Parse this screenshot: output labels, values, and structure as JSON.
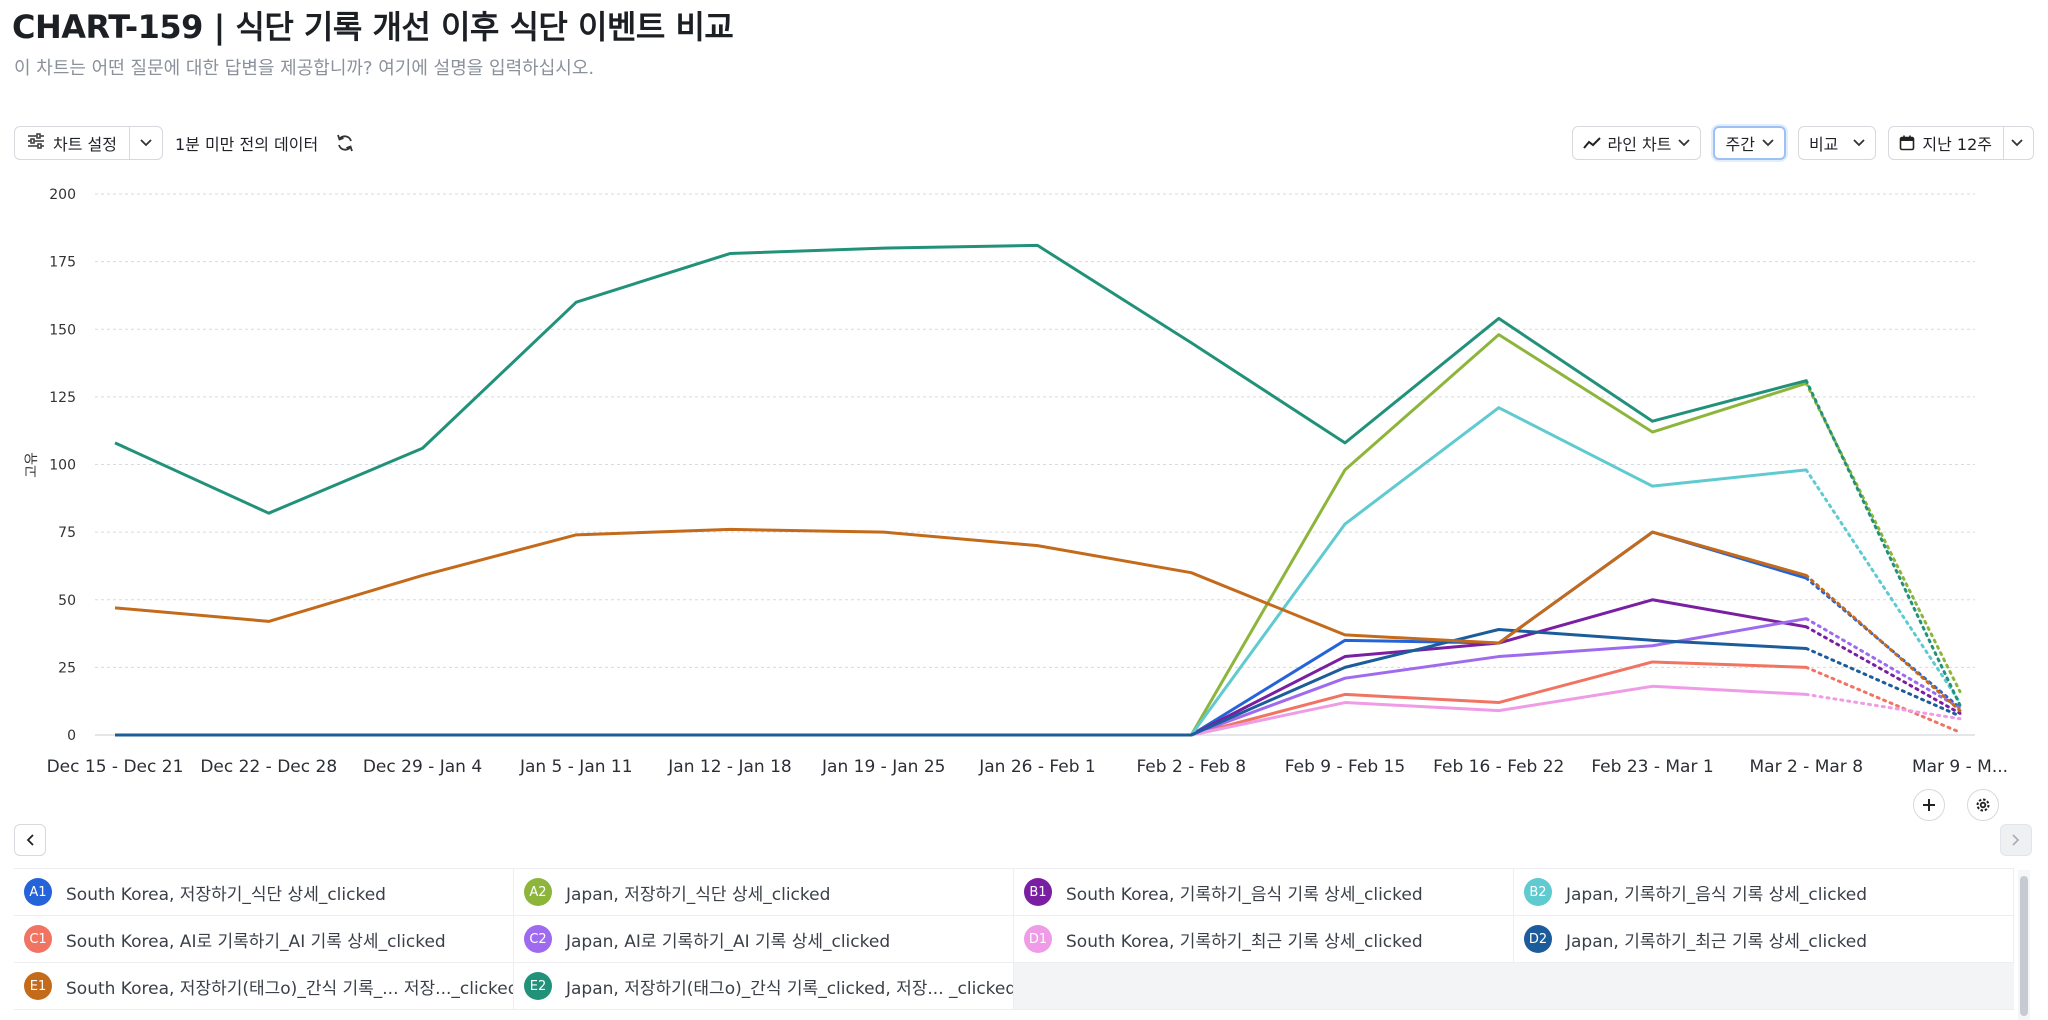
{
  "header": {
    "title": "CHART-159 | 식단 기록 개선 이후 식단 이벤트 비교",
    "subtitle": "이 차트는 어떤 질문에 대한 답변을 제공합니까? 여기에 설명을 입력하십시오."
  },
  "toolbar": {
    "settings_label": "차트 설정",
    "updated_label": "1분 미만 전의 데이터",
    "chart_type_label": "라인 차트",
    "interval_label": "주간",
    "compare_label": "비교",
    "range_label": "지난 12주"
  },
  "icons": {
    "settings": "sliders-icon",
    "refresh": "refresh-icon",
    "line_chart": "line-chart-icon",
    "calendar": "calendar-icon",
    "add": "plus-icon",
    "gear": "gear-icon",
    "prev": "chevron-left-icon",
    "next": "chevron-right-icon"
  },
  "chart_data": {
    "type": "line",
    "title": "",
    "xlabel": "",
    "ylabel": "고유",
    "ylim": [
      0,
      200
    ],
    "yticks": [
      0,
      25,
      50,
      75,
      100,
      125,
      150,
      175,
      200
    ],
    "grid": true,
    "categories": [
      "Dec 15 - Dec 21",
      "Dec 22 - Dec 28",
      "Dec 29 - Jan 4",
      "Jan 5 - Jan 11",
      "Jan 12 - Jan 18",
      "Jan 19 - Jan 25",
      "Jan 26 - Feb 1",
      "Feb 2 - Feb 8",
      "Feb 9 - Feb 15",
      "Feb 16 - Feb 22",
      "Feb 23 - Mar 1",
      "Mar 2 - Mar 8",
      "Mar 9 - M..."
    ],
    "series": [
      {
        "code": "A1",
        "name": "South Korea, 저장하기_식단 상세_clicked",
        "color": "#2563d8",
        "values": [
          0,
          0,
          0,
          0,
          0,
          0,
          0,
          0,
          35,
          34,
          75,
          58,
          10
        ]
      },
      {
        "code": "A2",
        "name": "Japan, 저장하기_식단 상세_clicked",
        "color": "#8db53c",
        "values": [
          0,
          0,
          0,
          0,
          0,
          0,
          0,
          0,
          98,
          148,
          112,
          130,
          16
        ]
      },
      {
        "code": "B1",
        "name": "South Korea, 기록하기_음식 기록 상세_clicked",
        "color": "#7b1fa2",
        "values": [
          0,
          0,
          0,
          0,
          0,
          0,
          0,
          0,
          29,
          34,
          50,
          40,
          8
        ]
      },
      {
        "code": "B2",
        "name": "Japan, 기록하기_음식 기록 상세_clicked",
        "color": "#5fcad0",
        "values": [
          0,
          0,
          0,
          0,
          0,
          0,
          0,
          0,
          78,
          121,
          92,
          98,
          12
        ]
      },
      {
        "code": "C1",
        "name": "South Korea, AI로 기록하기_AI 기록 상세_clicked",
        "color": "#f07461",
        "values": [
          0,
          0,
          0,
          0,
          0,
          0,
          0,
          0,
          15,
          12,
          27,
          25,
          1
        ]
      },
      {
        "code": "C2",
        "name": "Japan, AI로 기록하기_AI 기록 상세_clicked",
        "color": "#9f6bee",
        "values": [
          0,
          0,
          0,
          0,
          0,
          0,
          0,
          0,
          21,
          29,
          33,
          43,
          10
        ]
      },
      {
        "code": "D1",
        "name": "South Korea, 기록하기_최근 기록 상세_clicked",
        "color": "#ef9be6",
        "values": [
          0,
          0,
          0,
          0,
          0,
          0,
          0,
          0,
          12,
          9,
          18,
          15,
          6
        ]
      },
      {
        "code": "D2",
        "name": "Japan, 기록하기_최근 기록 상세_clicked",
        "color": "#1c5c9a",
        "values": [
          0,
          0,
          0,
          0,
          0,
          0,
          0,
          0,
          25,
          39,
          35,
          32,
          7
        ]
      },
      {
        "code": "E1",
        "name": "South Korea, 저장하기(태그o)_간식 기록_... 저장..._clicked",
        "color": "#c46a1b",
        "values": [
          47,
          42,
          59,
          74,
          76,
          75,
          70,
          60,
          37,
          34,
          75,
          59,
          9
        ]
      },
      {
        "code": "E2",
        "name": "Japan, 저장하기(태그o)_간식 기록_clicked, 저장... _clicked",
        "color": "#22917a",
        "values": [
          108,
          82,
          106,
          160,
          178,
          180,
          181,
          145,
          108,
          154,
          116,
          131,
          11
        ]
      }
    ]
  }
}
